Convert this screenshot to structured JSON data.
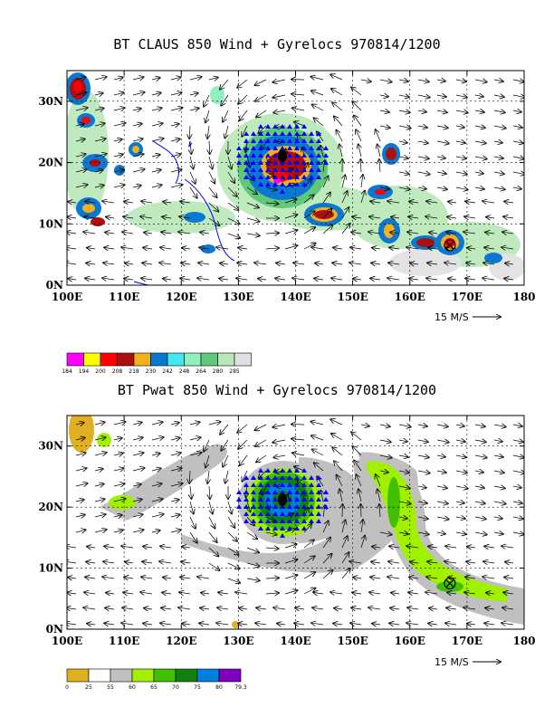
{
  "panel1": {
    "title": "BT CLAUS 850 Wind + Gyrelocs 970814/1200",
    "colorbar_labels": [
      "184",
      "194",
      "200",
      "208",
      "218",
      "230",
      "242",
      "248",
      "264",
      "280",
      "285"
    ],
    "colorbar_colors": [
      "#ff00ff",
      "#ffff00",
      "#ff0000",
      "#aa1010",
      "#f0b020",
      "#0a78d0",
      "#40e8f0",
      "#90f0c0",
      "#60c878",
      "#b8e8b8",
      "#e0e0e0"
    ]
  },
  "panel2": {
    "title": "BT Pwat 850 Wind + Gyrelocs 970814/1200",
    "colorbar_labels": [
      "0",
      "25",
      "55",
      "60",
      "65",
      "70",
      "75",
      "80",
      "79.3"
    ],
    "colorbar_colors": [
      "#e0b020",
      "#ffffff",
      "#c0c0c0",
      "#a0f000",
      "#40c000",
      "#108010",
      "#0080e0",
      "#8000c0"
    ]
  },
  "axes": {
    "lon_labels": [
      "100E",
      "110E",
      "120E",
      "130E",
      "140E",
      "150E",
      "160E",
      "170E",
      "180"
    ],
    "lat_labels": [
      "30N",
      "20N",
      "10N",
      "0N"
    ],
    "reference_vector": "15 M/S"
  },
  "colors": {
    "coast": "#0000ff",
    "marker": "#0000ff",
    "center": "#000000"
  }
}
